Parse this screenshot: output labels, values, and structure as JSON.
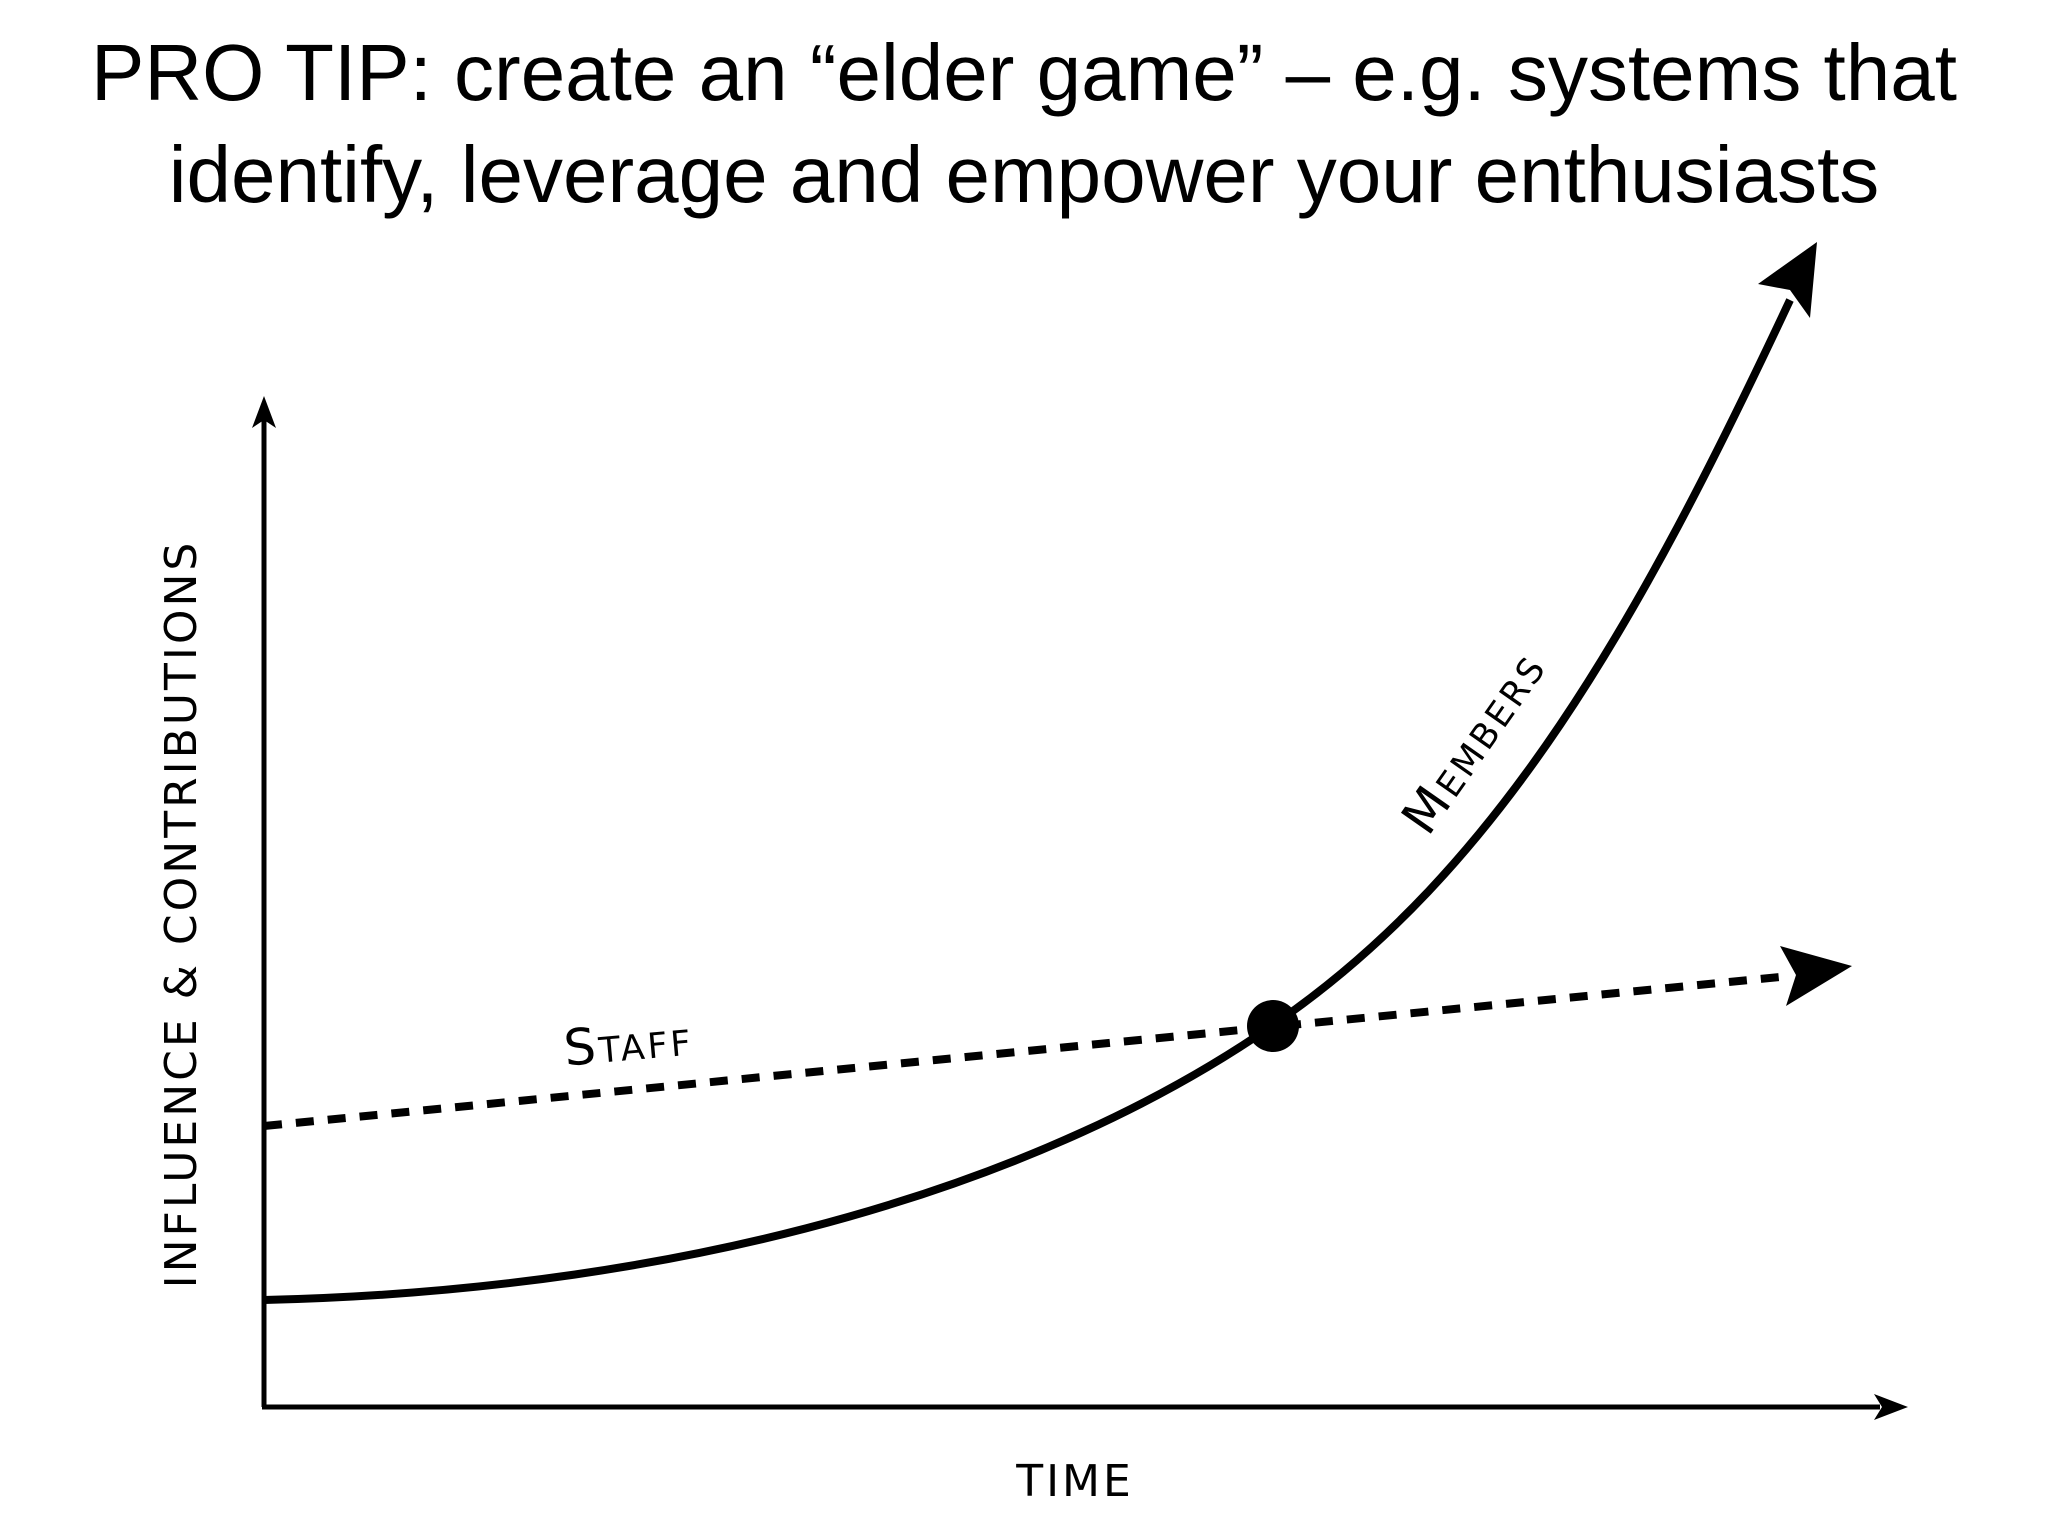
{
  "title": {
    "lines": [
      "PRO TIP: create an “elder game” – e.g. systems that",
      "identify, leverage and empower your enthusiasts"
    ]
  },
  "axes": {
    "y_label": "Influence & Contributions",
    "x_label": "Time"
  },
  "curves": {
    "staff": "Staff",
    "members": "Members"
  }
}
